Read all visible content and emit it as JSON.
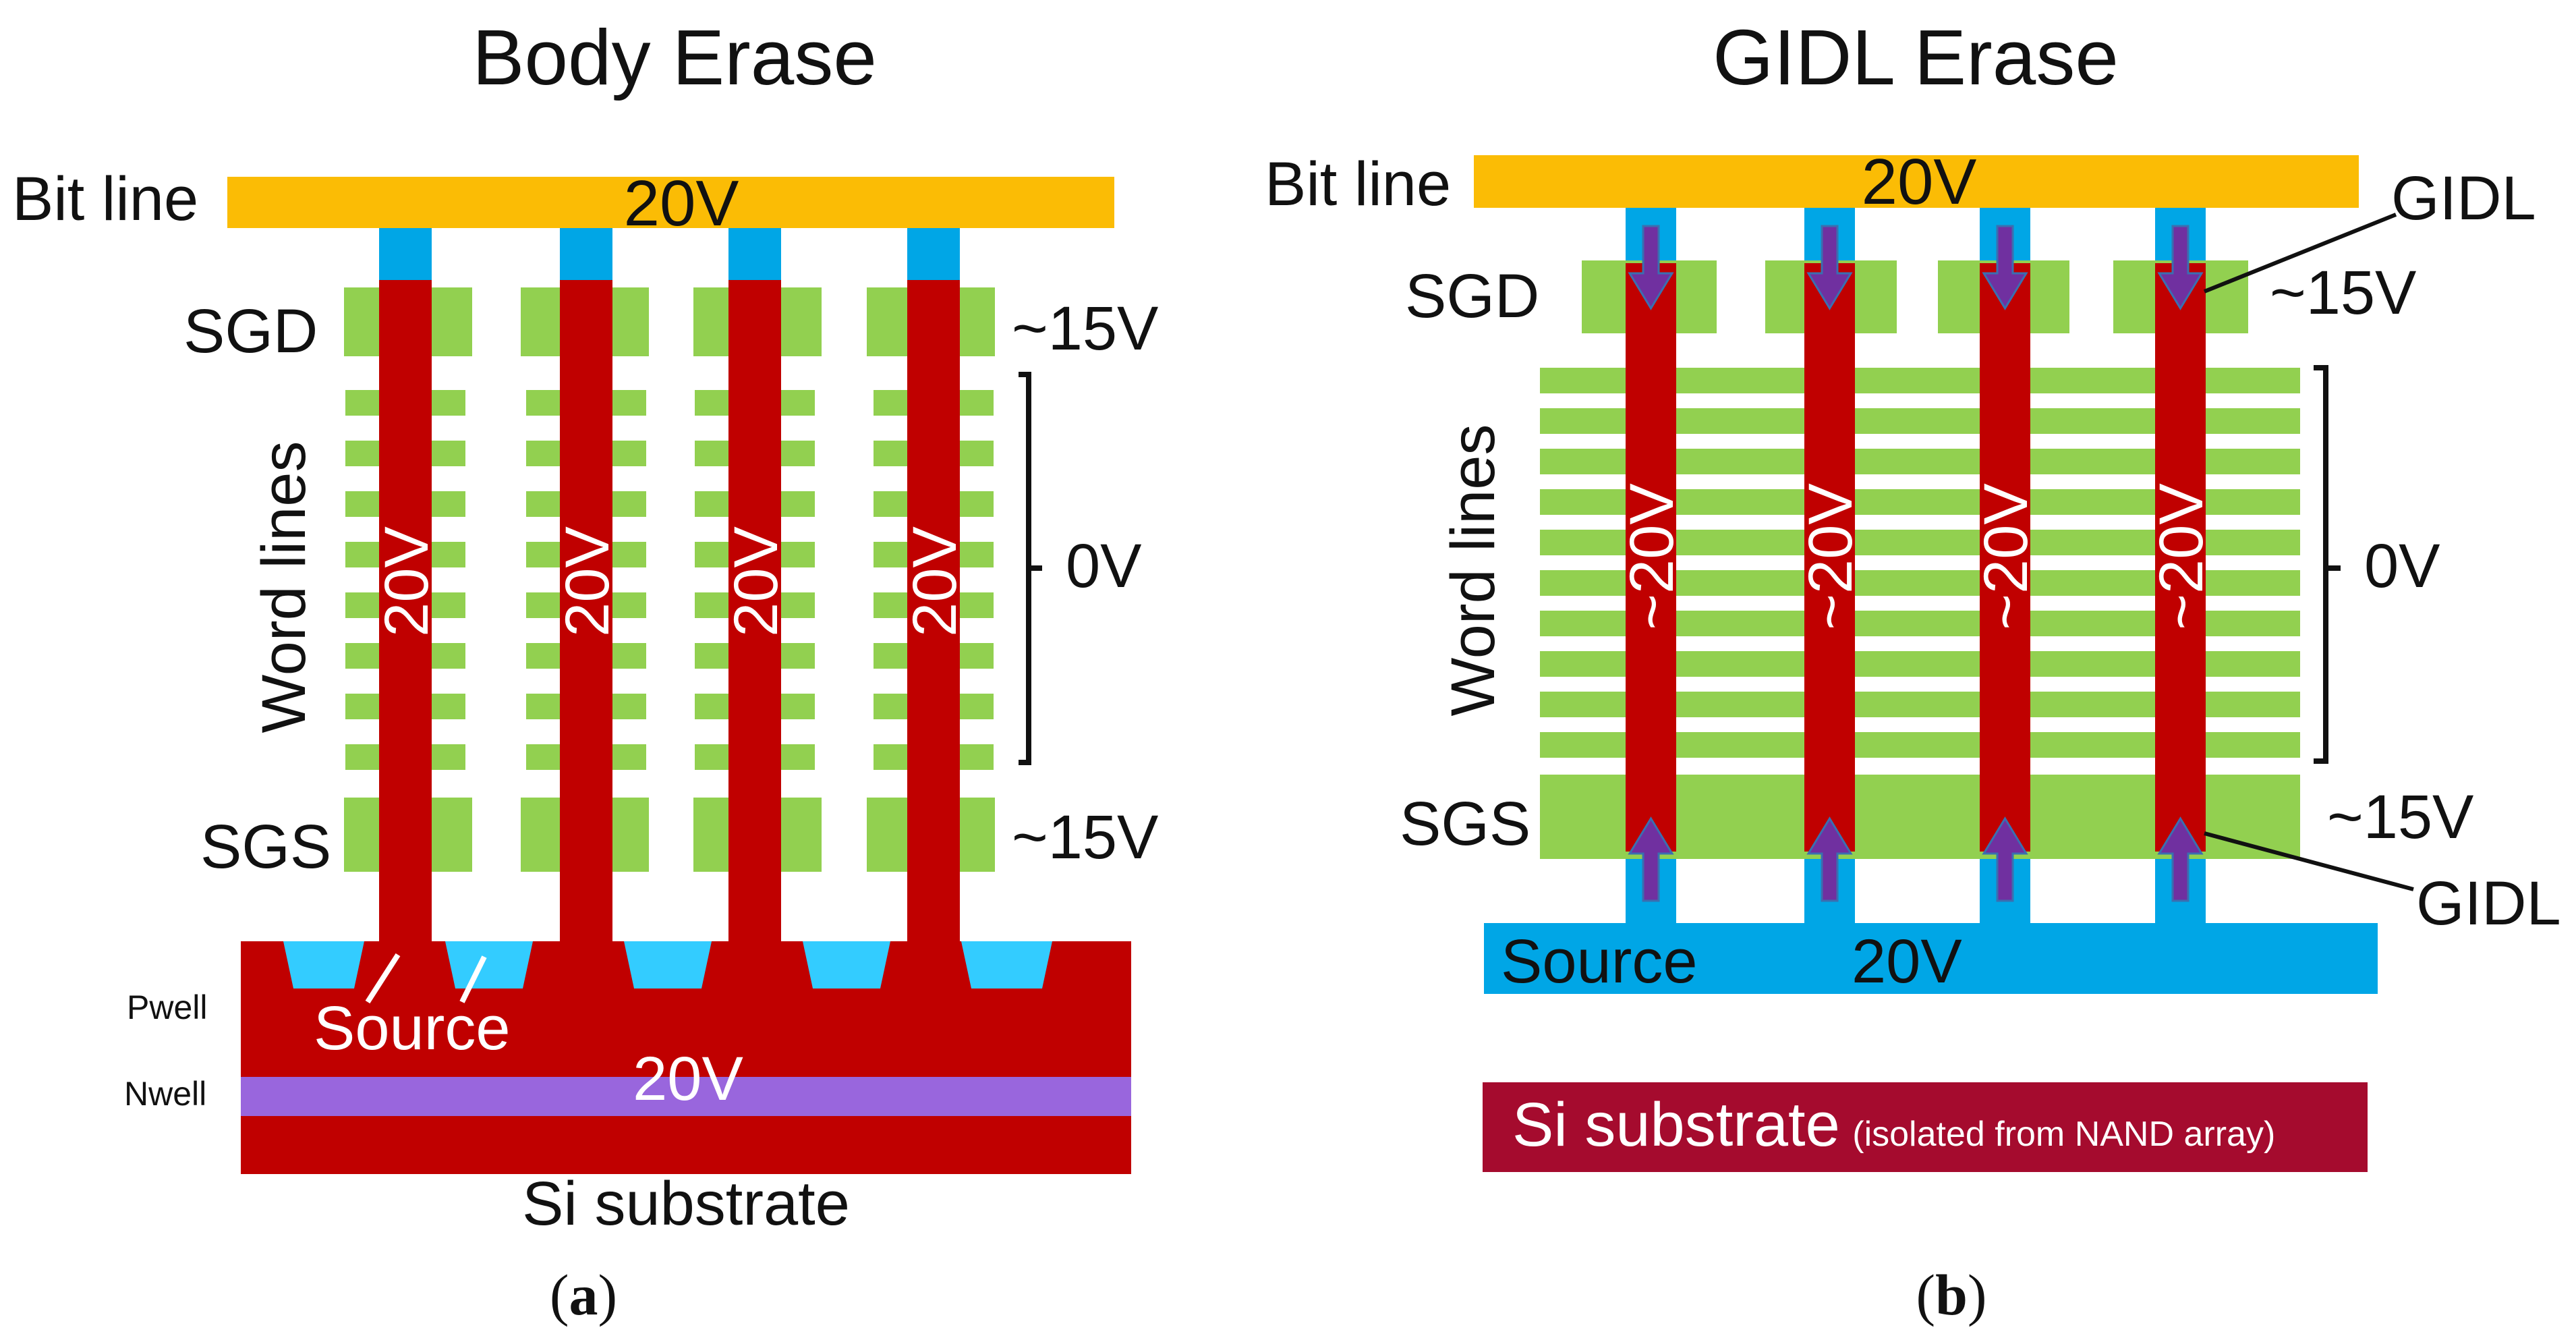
{
  "colors": {
    "bitline": "#fbbc05",
    "plug": "#00a6e6",
    "gate": "#92d050",
    "channel": "#c00000",
    "nwell": "#9966dd",
    "source_pocket": "#33ccff",
    "substrate_b": "#a50b2e",
    "arrow": "#7030a0"
  },
  "panel_a": {
    "title": "Body Erase",
    "bitline_label": "Bit line",
    "bitline_voltage": "20V",
    "sgd_label": "SGD",
    "sgd_voltage": "~15V",
    "wordlines_label": "Word lines",
    "wordlines_voltage": "0V",
    "sgs_label": "SGS",
    "sgs_voltage": "~15V",
    "channel_voltage": "20V",
    "source_label": "Source",
    "pwell_label": "Pwell",
    "nwell_label": "Nwell",
    "well_voltage": "20V",
    "substrate_label": "Si substrate",
    "caption_letter": "a"
  },
  "panel_b": {
    "title": "GIDL Erase",
    "bitline_label": "Bit line",
    "bitline_voltage": "20V",
    "gidl_top_label": "GIDL",
    "sgd_label": "SGD",
    "sgd_voltage": "~15V",
    "wordlines_label": "Word lines",
    "wordlines_voltage": "0V",
    "sgs_label": "SGS",
    "sgs_voltage": "~15V",
    "gidl_bottom_label": "GIDL",
    "channel_voltage": "~20V",
    "source_label": "Source",
    "source_voltage": "20V",
    "substrate_label": "Si substrate",
    "substrate_note": "(isolated from NAND array)",
    "caption_letter": "b"
  }
}
